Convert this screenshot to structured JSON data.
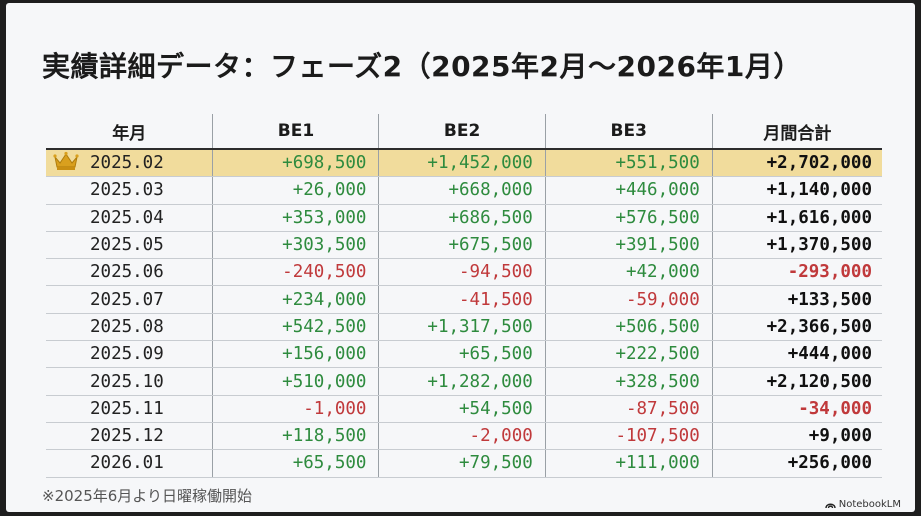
{
  "title": "実績詳細データ：フェーズ2（2025年2月〜2026年1月）",
  "columns": [
    "年月",
    "BE1",
    "BE2",
    "BE3",
    "月間合計"
  ],
  "rows": [
    {
      "month": "2025.02",
      "be1": "+698,500",
      "be2": "+1,452,000",
      "be3": "+551,500",
      "total": "+2,702,000",
      "top": true
    },
    {
      "month": "2025.03",
      "be1": "+26,000",
      "be2": "+668,000",
      "be3": "+446,000",
      "total": "+1,140,000"
    },
    {
      "month": "2025.04",
      "be1": "+353,000",
      "be2": "+686,500",
      "be3": "+576,500",
      "total": "+1,616,000"
    },
    {
      "month": "2025.05",
      "be1": "+303,500",
      "be2": "+675,500",
      "be3": "+391,500",
      "total": "+1,370,500"
    },
    {
      "month": "2025.06",
      "be1": "-240,500",
      "be2": "-94,500",
      "be3": "+42,000",
      "total": "-293,000"
    },
    {
      "month": "2025.07",
      "be1": "+234,000",
      "be2": "-41,500",
      "be3": "-59,000",
      "total": "+133,500"
    },
    {
      "month": "2025.08",
      "be1": "+542,500",
      "be2": "+1,317,500",
      "be3": "+506,500",
      "total": "+2,366,500"
    },
    {
      "month": "2025.09",
      "be1": "+156,000",
      "be2": "+65,500",
      "be3": "+222,500",
      "total": "+444,000"
    },
    {
      "month": "2025.10",
      "be1": "+510,000",
      "be2": "+1,282,000",
      "be3": "+328,500",
      "total": "+2,120,500"
    },
    {
      "month": "2025.11",
      "be1": "-1,000",
      "be2": "+54,500",
      "be3": "-87,500",
      "total": "-34,000"
    },
    {
      "month": "2025.12",
      "be1": "+118,500",
      "be2": "-2,000",
      "be3": "-107,500",
      "total": "+9,000"
    },
    {
      "month": "2026.01",
      "be1": "+65,500",
      "be2": "+79,500",
      "be3": "+111,000",
      "total": "+256,000"
    }
  ],
  "note": "※2025年6月より日曜稼働開始",
  "brand": "NotebookLM",
  "icons": {
    "top_month": "crown-icon",
    "brand": "notebooklm-logo-icon"
  },
  "colors": {
    "positive": "#2e8b3e",
    "negative": "#c0393b",
    "highlight": "#f1dc9c"
  }
}
